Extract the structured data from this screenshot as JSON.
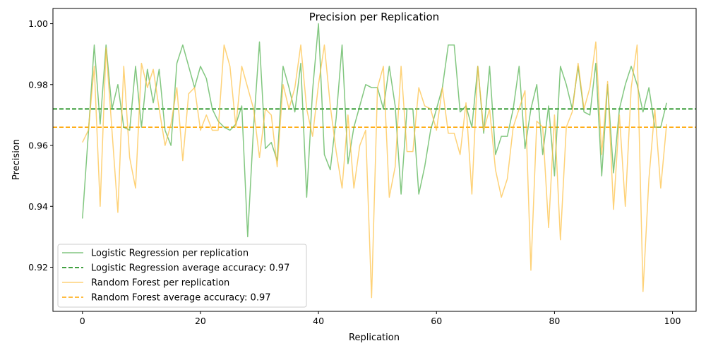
{
  "chart_data": {
    "type": "line",
    "title": "Precision per Replication",
    "xlabel": "Replication",
    "ylabel": "Precision",
    "xlim": [
      -5,
      104
    ],
    "ylim": [
      0.9055,
      1.005
    ],
    "xticks": [
      0,
      20,
      40,
      60,
      80,
      100
    ],
    "yticks": [
      0.92,
      0.94,
      0.96,
      0.98,
      1.0
    ],
    "ytick_labels": [
      "0.92",
      "0.94",
      "0.96",
      "0.98",
      "1.00"
    ],
    "grid": false,
    "legend_position": "lower-left",
    "series": [
      {
        "name": "Logistic Regression per replication",
        "color": "#4daf4a",
        "opacity": 0.7,
        "style": "solid",
        "x": [
          0,
          1,
          2,
          3,
          4,
          5,
          6,
          7,
          8,
          9,
          10,
          11,
          12,
          13,
          14,
          15,
          16,
          17,
          18,
          19,
          20,
          21,
          22,
          23,
          24,
          25,
          26,
          27,
          28,
          29,
          30,
          31,
          32,
          33,
          34,
          35,
          36,
          37,
          38,
          39,
          40,
          41,
          42,
          43,
          44,
          45,
          46,
          47,
          48,
          49,
          50,
          51,
          52,
          53,
          54,
          55,
          56,
          57,
          58,
          59,
          60,
          61,
          62,
          63,
          64,
          65,
          66,
          67,
          68,
          69,
          70,
          71,
          72,
          73,
          74,
          75,
          76,
          77,
          78,
          79,
          80,
          81,
          82,
          83,
          84,
          85,
          86,
          87,
          88,
          89,
          90,
          91,
          92,
          93,
          94,
          95,
          96,
          97,
          98,
          99
        ],
        "values": [
          0.936,
          0.964,
          0.993,
          0.967,
          0.993,
          0.972,
          0.98,
          0.966,
          0.965,
          0.986,
          0.966,
          0.985,
          0.974,
          0.985,
          0.965,
          0.96,
          0.987,
          0.993,
          0.986,
          0.979,
          0.986,
          0.982,
          0.972,
          0.968,
          0.966,
          0.965,
          0.967,
          0.973,
          0.93,
          0.966,
          0.994,
          0.959,
          0.961,
          0.955,
          0.986,
          0.979,
          0.971,
          0.987,
          0.943,
          0.978,
          1.0,
          0.957,
          0.952,
          0.969,
          0.993,
          0.954,
          0.966,
          0.973,
          0.98,
          0.979,
          0.979,
          0.972,
          0.986,
          0.973,
          0.944,
          0.972,
          0.972,
          0.944,
          0.953,
          0.965,
          0.972,
          0.979,
          0.993,
          0.993,
          0.971,
          0.973,
          0.966,
          0.986,
          0.964,
          0.986,
          0.957,
          0.963,
          0.963,
          0.972,
          0.986,
          0.959,
          0.972,
          0.98,
          0.957,
          0.973,
          0.95,
          0.986,
          0.98,
          0.972,
          0.986,
          0.971,
          0.97,
          0.987,
          0.95,
          0.98,
          0.951,
          0.972,
          0.98,
          0.986,
          0.98,
          0.971,
          0.979,
          0.966,
          0.966,
          0.974
        ]
      },
      {
        "name": "Logistic Regression average accuracy: 0.97",
        "color": "#008000",
        "style": "dashed",
        "hline": 0.972
      },
      {
        "name": "Random Forest per replication",
        "color": "#fdbf3f",
        "opacity": 0.7,
        "style": "solid",
        "x": [
          0,
          1,
          2,
          3,
          4,
          5,
          6,
          7,
          8,
          9,
          10,
          11,
          12,
          13,
          14,
          15,
          16,
          17,
          18,
          19,
          20,
          21,
          22,
          23,
          24,
          25,
          26,
          27,
          28,
          29,
          30,
          31,
          32,
          33,
          34,
          35,
          36,
          37,
          38,
          39,
          40,
          41,
          42,
          43,
          44,
          45,
          46,
          47,
          48,
          49,
          50,
          51,
          52,
          53,
          54,
          55,
          56,
          57,
          58,
          59,
          60,
          61,
          62,
          63,
          64,
          65,
          66,
          67,
          68,
          69,
          70,
          71,
          72,
          73,
          74,
          75,
          76,
          77,
          78,
          79,
          80,
          81,
          82,
          83,
          84,
          85,
          86,
          87,
          88,
          89,
          90,
          91,
          92,
          93,
          94,
          95,
          96,
          97,
          98,
          99
        ],
        "values": [
          0.961,
          0.965,
          0.986,
          0.94,
          0.992,
          0.965,
          0.938,
          0.986,
          0.956,
          0.946,
          0.987,
          0.979,
          0.985,
          0.972,
          0.96,
          0.967,
          0.979,
          0.955,
          0.977,
          0.979,
          0.965,
          0.97,
          0.965,
          0.965,
          0.993,
          0.986,
          0.966,
          0.986,
          0.979,
          0.972,
          0.956,
          0.972,
          0.97,
          0.953,
          0.98,
          0.972,
          0.979,
          0.993,
          0.972,
          0.963,
          0.98,
          0.993,
          0.973,
          0.958,
          0.946,
          0.97,
          0.946,
          0.96,
          0.965,
          0.91,
          0.979,
          0.986,
          0.943,
          0.953,
          0.986,
          0.958,
          0.958,
          0.979,
          0.973,
          0.972,
          0.965,
          0.979,
          0.964,
          0.964,
          0.957,
          0.974,
          0.944,
          0.986,
          0.965,
          0.972,
          0.952,
          0.943,
          0.949,
          0.966,
          0.972,
          0.978,
          0.919,
          0.968,
          0.966,
          0.933,
          0.97,
          0.929,
          0.966,
          0.971,
          0.987,
          0.972,
          0.979,
          0.994,
          0.957,
          0.981,
          0.939,
          0.97,
          0.94,
          0.979,
          0.993,
          0.912,
          0.949,
          0.972,
          0.946,
          0.967
        ]
      },
      {
        "name": "Random Forest average accuracy: 0.97",
        "color": "#ffa500",
        "style": "dashed",
        "hline": 0.966
      }
    ]
  }
}
